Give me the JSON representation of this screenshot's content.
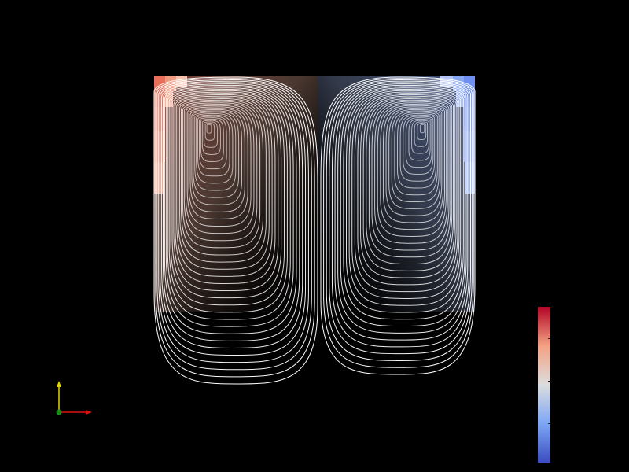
{
  "scene": {
    "background": "#000000",
    "field_colormap": [
      "#3b4cc0",
      "#7ea6f6",
      "#dcdddd",
      "#f4a183",
      "#b40426"
    ],
    "left_vortex_color": "#f4a183",
    "right_vortex_color": "#7ea6f6",
    "contour_color": "#ffffff",
    "contour_count": 36
  },
  "colorbar": {
    "colormap": "coolwarm",
    "top_color": "#b40426",
    "mid_color": "#dcdddd",
    "bottom_color": "#3b4cc0",
    "tick_count": 4
  },
  "orientation_axes": {
    "y_color": "#e6d400",
    "x_color": "#e01010",
    "origin_color": "#1a8a1a"
  }
}
